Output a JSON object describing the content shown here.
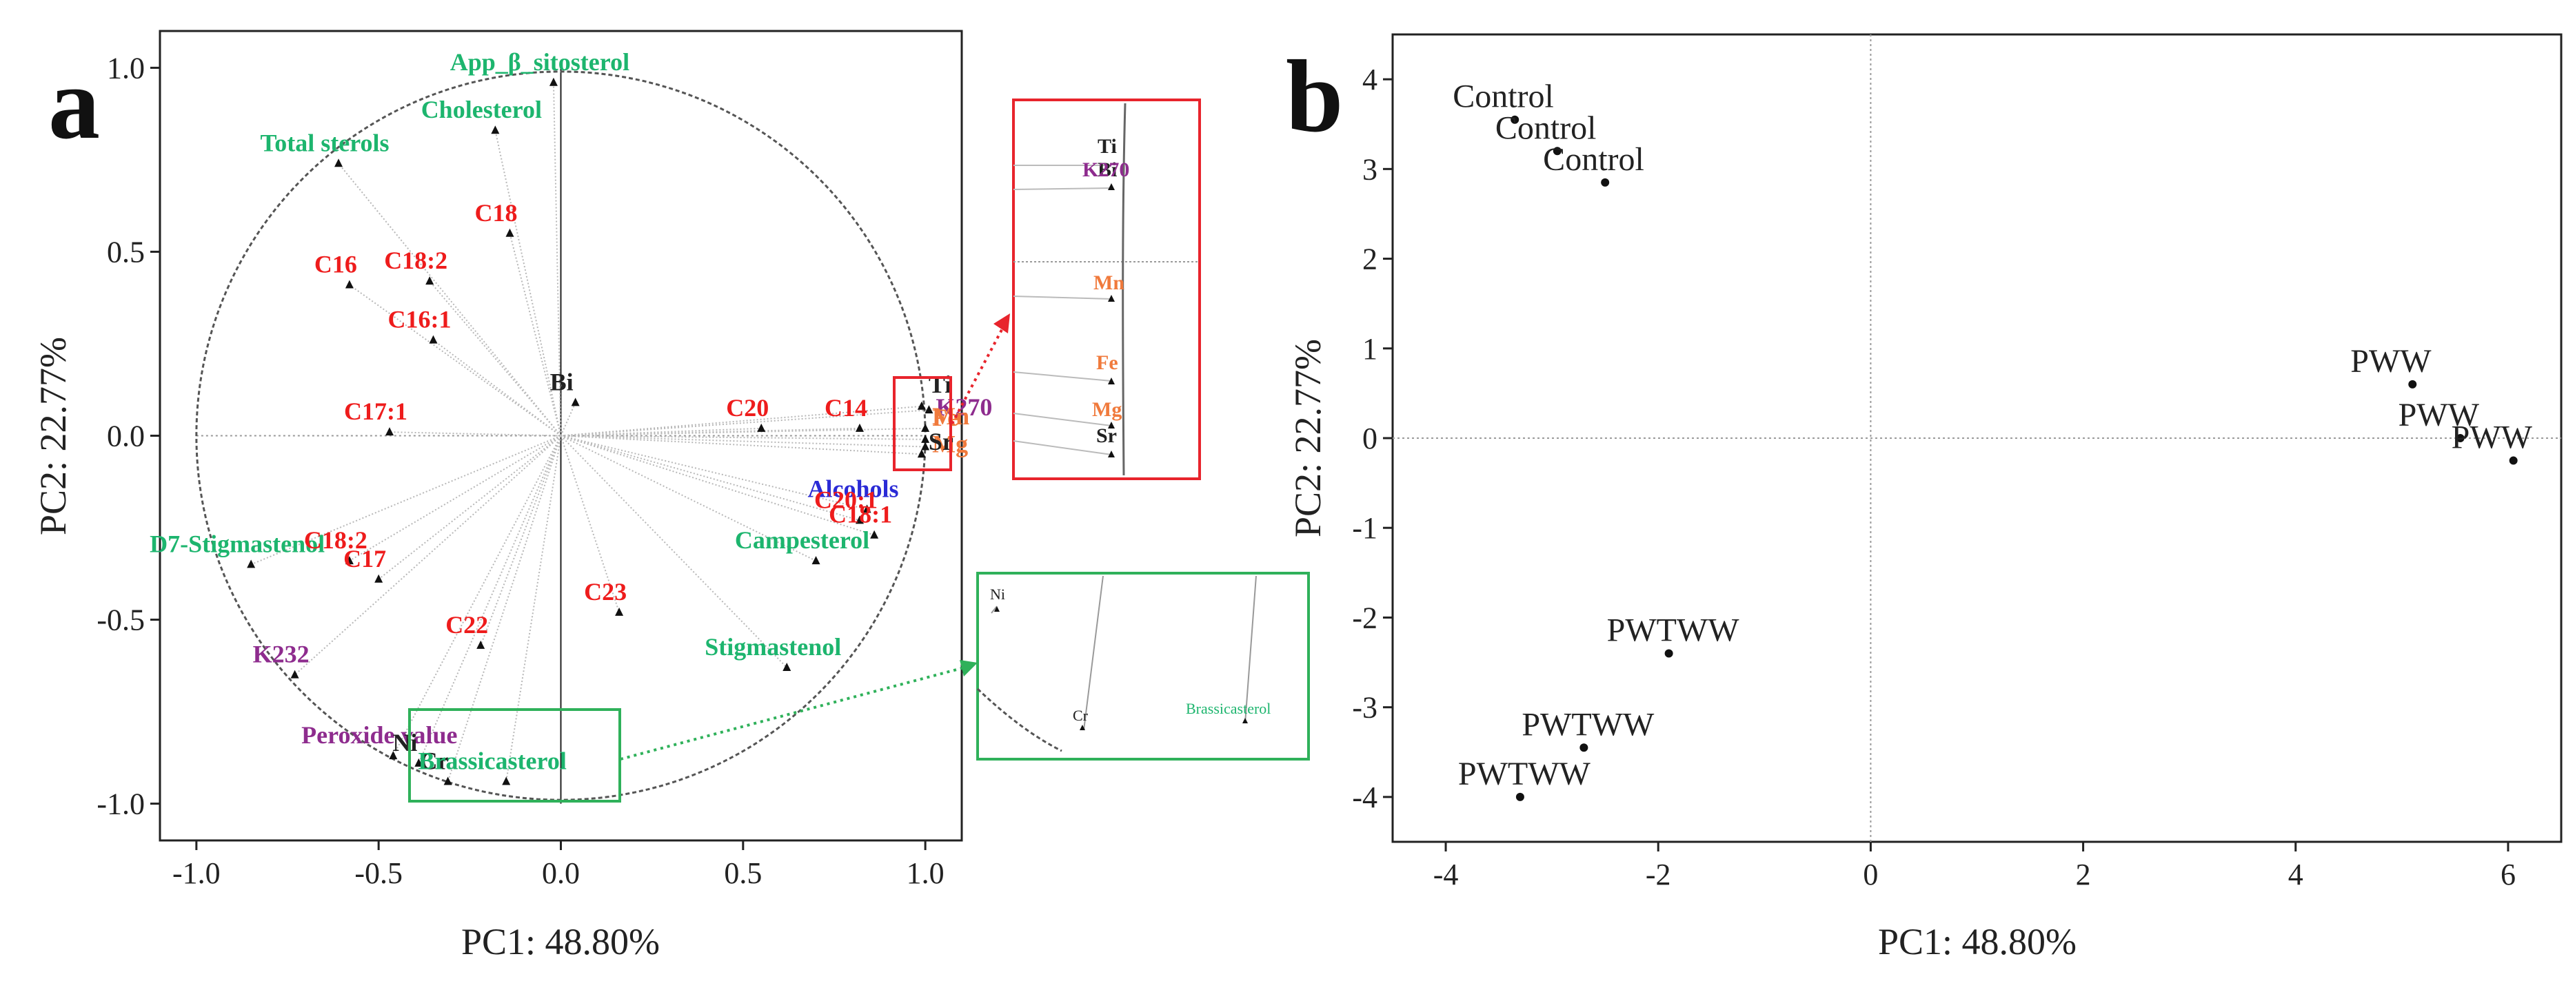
{
  "colors": {
    "text": "#222222",
    "green": "#1db56e",
    "red": "#ee1c1c",
    "purple": "#8e2c8e",
    "blue": "#2b2bd6",
    "orange": "#f07a3c",
    "grid": "#9a9a9a",
    "loading_line": "#b8b8b8",
    "zoom_red_box": "#e8242c",
    "zoom_green_box": "#2fb15a"
  },
  "panel_a": {
    "letter": "a",
    "xlabel": "PC1: 48.80%",
    "ylabel": "PC2: 22.77%"
  },
  "panel_b": {
    "letter": "b",
    "xlabel": "PC1: 48.80%",
    "ylabel": "PC2: 22.77%"
  },
  "chart_data": [
    {
      "panel": "a",
      "type": "scatter",
      "title": "",
      "xlabel": "PC1: 48.80%",
      "ylabel": "PC2: 22.77%",
      "xlim": [
        -1.1,
        1.1
      ],
      "ylim": [
        -1.1,
        1.1
      ],
      "xticks": [
        -1.0,
        -0.5,
        0.0,
        0.5,
        1.0
      ],
      "yticks": [
        -1.0,
        -0.5,
        0.0,
        0.5,
        1.0
      ],
      "xticklabels": [
        "-1.0",
        "-0.5",
        "0.0",
        "0.5",
        "1.0"
      ],
      "yticklabels": [
        "-1.0",
        "-0.5",
        "0.0",
        "0.5",
        "1.0"
      ],
      "unit_circle": true,
      "points": [
        {
          "label": "App_β_sitosterol",
          "x": -0.02,
          "y": 0.96,
          "color": "green"
        },
        {
          "label": "Cholesterol",
          "x": -0.18,
          "y": 0.83,
          "color": "green"
        },
        {
          "label": "Total sterols",
          "x": -0.61,
          "y": 0.74,
          "color": "green"
        },
        {
          "label": "C18",
          "x": -0.14,
          "y": 0.55,
          "color": "red"
        },
        {
          "label": "C16",
          "x": -0.58,
          "y": 0.41,
          "color": "red"
        },
        {
          "label": "C18:2",
          "x": -0.36,
          "y": 0.42,
          "color": "red"
        },
        {
          "label": "C16:1",
          "x": -0.35,
          "y": 0.26,
          "color": "red"
        },
        {
          "label": "Bi",
          "x": 0.04,
          "y": 0.09,
          "color": "text"
        },
        {
          "label": "C17:1",
          "x": -0.47,
          "y": 0.01,
          "color": "red"
        },
        {
          "label": "C20",
          "x": 0.55,
          "y": 0.02,
          "color": "red"
        },
        {
          "label": "C14",
          "x": 0.82,
          "y": 0.02,
          "color": "red"
        },
        {
          "label": "Alcohols",
          "x": 0.84,
          "y": -0.2,
          "color": "blue"
        },
        {
          "label": "C20:1",
          "x": 0.82,
          "y": -0.23,
          "color": "red"
        },
        {
          "label": "C18:1",
          "x": 0.86,
          "y": -0.27,
          "color": "red"
        },
        {
          "label": "Campesterol",
          "x": 0.7,
          "y": -0.34,
          "color": "green"
        },
        {
          "label": "D7-Stigmastenol",
          "x": -0.85,
          "y": -0.35,
          "color": "green"
        },
        {
          "label": "C18:2",
          "x": -0.58,
          "y": -0.34,
          "color": "red"
        },
        {
          "label": "C17",
          "x": -0.5,
          "y": -0.39,
          "color": "red"
        },
        {
          "label": "C23",
          "x": 0.16,
          "y": -0.48,
          "color": "red"
        },
        {
          "label": "C22",
          "x": -0.22,
          "y": -0.57,
          "color": "red"
        },
        {
          "label": "Stigmastenol",
          "x": 0.62,
          "y": -0.63,
          "color": "green"
        },
        {
          "label": "K232",
          "x": -0.73,
          "y": -0.65,
          "color": "purple"
        },
        {
          "label": "Peroxide value",
          "x": -0.46,
          "y": -0.87,
          "color": "purple"
        },
        {
          "label": "Ni",
          "x": -0.39,
          "y": -0.89,
          "color": "text"
        },
        {
          "label": "Cr",
          "x": -0.31,
          "y": -0.94,
          "color": "text"
        },
        {
          "label": "Brassicasterol",
          "x": -0.15,
          "y": -0.94,
          "color": "green"
        },
        {
          "label": "Ti",
          "x": 0.99,
          "y": 0.08,
          "color": "text"
        },
        {
          "label": "K270",
          "x": 1.01,
          "y": 0.07,
          "color": "purple"
        },
        {
          "label": "Mn",
          "x": 1.0,
          "y": 0.02,
          "color": "orange"
        },
        {
          "label": "Fe",
          "x": 1.0,
          "y": -0.01,
          "color": "orange"
        },
        {
          "label": "Mg",
          "x": 1.0,
          "y": -0.03,
          "color": "orange"
        },
        {
          "label": "Sr",
          "x": 0.99,
          "y": -0.05,
          "color": "text"
        }
      ],
      "zoom_insets": [
        {
          "name": "red-zoom",
          "labels": [
            "Ti",
            "K270",
            "Mn",
            "Fe",
            "Mg",
            "Sr"
          ]
        },
        {
          "name": "green-zoom",
          "labels": [
            "Ni",
            "Cr",
            "Brassicasterol"
          ]
        }
      ]
    },
    {
      "panel": "b",
      "type": "scatter",
      "title": "",
      "xlabel": "PC1: 48.80%",
      "ylabel": "PC2: 22.77%",
      "xlim": [
        -4.5,
        6.5
      ],
      "ylim": [
        -4.5,
        4.5
      ],
      "xticks": [
        -4,
        -2,
        0,
        2,
        4,
        6
      ],
      "yticks": [
        -4,
        -3,
        -2,
        -1,
        0,
        1,
        2,
        3,
        4
      ],
      "xticklabels": [
        "-4",
        "-2",
        "0",
        "2",
        "4",
        "6"
      ],
      "yticklabels": [
        "-4",
        "-3",
        "-2",
        "-1",
        "0",
        "1",
        "2",
        "3",
        "4"
      ],
      "grid": false,
      "points": [
        {
          "label": "Control",
          "x": -3.35,
          "y": 3.55
        },
        {
          "label": "Control",
          "x": -2.95,
          "y": 3.2
        },
        {
          "label": "Control",
          "x": -2.5,
          "y": 2.85
        },
        {
          "label": "PWW",
          "x": 5.1,
          "y": 0.6
        },
        {
          "label": "PWW",
          "x": 5.55,
          "y": 0.0
        },
        {
          "label": "PWW",
          "x": 6.05,
          "y": -0.25
        },
        {
          "label": "PWTWW",
          "x": -1.9,
          "y": -2.4
        },
        {
          "label": "PWTWW",
          "x": -2.7,
          "y": -3.45
        },
        {
          "label": "PWTWW",
          "x": -3.3,
          "y": -4.0
        }
      ]
    }
  ],
  "label_offsets_note": "labels drawn above-left of each marker"
}
